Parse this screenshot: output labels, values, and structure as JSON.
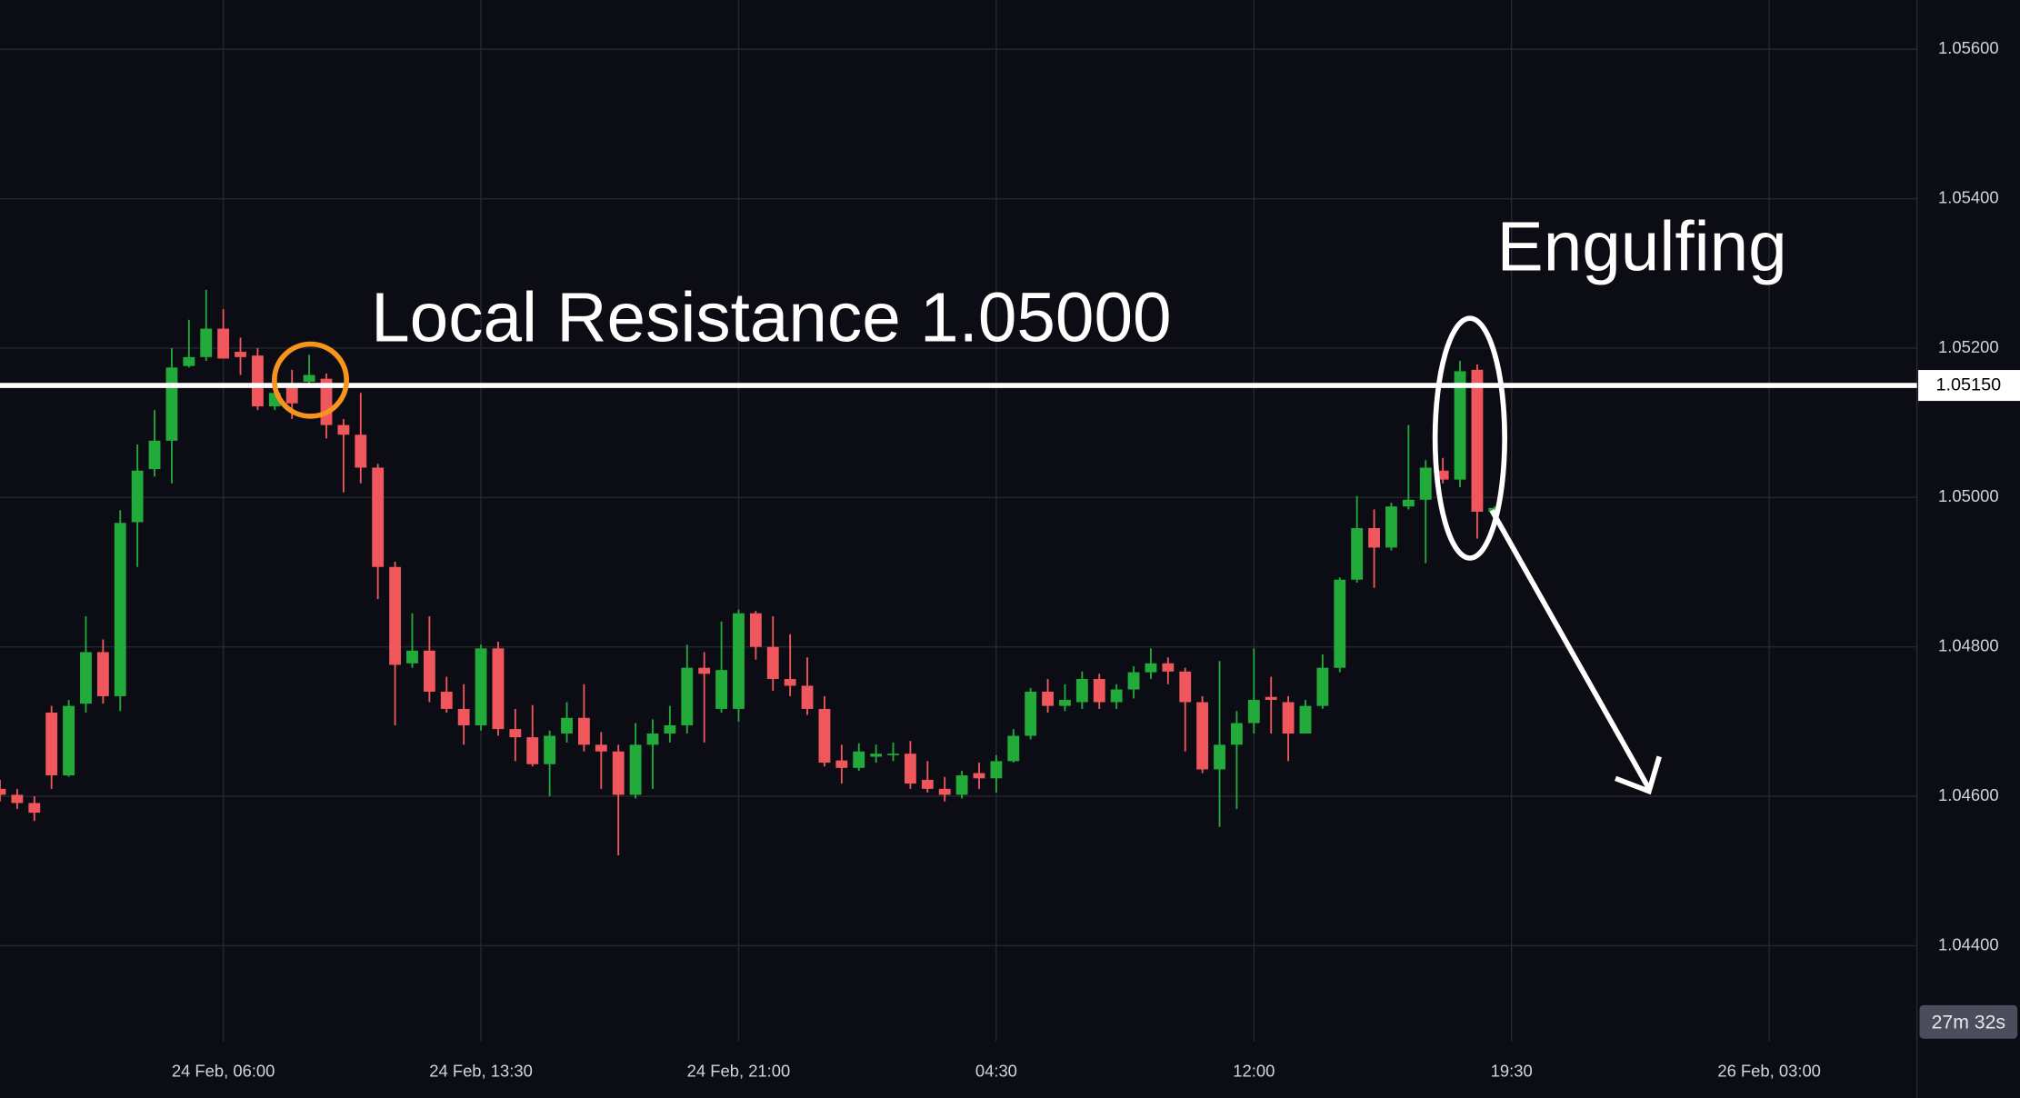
{
  "chart_data": {
    "type": "candlestick",
    "annotations": [
      "Local Resistance 1.05000",
      "Engulfing"
    ],
    "timer": "27m 32s",
    "up_color": "#22ab3b",
    "down_color": "#f0575c",
    "grid": true,
    "xlim": [
      0,
      111.6
    ],
    "xticks": [
      {
        "value": 13,
        "label": "24 Feb, 06:00"
      },
      {
        "value": 28,
        "label": "24 Feb, 13:30"
      },
      {
        "value": 43,
        "label": "24 Feb, 21:00"
      },
      {
        "value": 58,
        "label": "04:30"
      },
      {
        "value": 73,
        "label": "12:00"
      },
      {
        "value": 88,
        "label": "19:30"
      },
      {
        "value": 103,
        "label": "26 Feb, 03:00"
      }
    ],
    "ylim": [
      1.04272,
      1.05666
    ],
    "yticks": [
      {
        "value": 1.044,
        "label": "1.04400"
      },
      {
        "value": 1.046,
        "label": "1.04600"
      },
      {
        "value": 1.048,
        "label": "1.04800"
      },
      {
        "value": 1.05,
        "label": "1.05000"
      },
      {
        "value": 1.052,
        "label": "1.05200"
      },
      {
        "value": 1.054,
        "label": "1.05400"
      },
      {
        "value": 1.056,
        "label": "1.05600"
      }
    ],
    "price_line": {
      "value": 1.0515,
      "label": "1.05150"
    },
    "open": [
      1.0461,
      1.04602,
      1.04591,
      1.04712,
      1.04628,
      1.04724,
      1.04793,
      1.04734,
      1.04967,
      1.05038,
      1.05076,
      1.05176,
      1.05188,
      1.05226,
      1.05195,
      1.0519,
      1.05122,
      1.05152,
      1.05155,
      1.05159,
      1.05097,
      1.05084,
      1.0504,
      1.04907,
      1.04778,
      1.04795,
      1.0474,
      1.04717,
      1.04695,
      1.04798,
      1.0469,
      1.04679,
      1.04643,
      1.04684,
      1.04705,
      1.04669,
      1.0466,
      1.04602,
      1.04669,
      1.04684,
      1.04695,
      1.04772,
      1.04717,
      1.04717,
      1.04845,
      1.048,
      1.04757,
      1.04748,
      1.04717,
      1.04648,
      1.04638,
      1.04653,
      1.04655,
      1.04657,
      1.04622,
      1.0461,
      1.04602,
      1.04631,
      1.04624,
      1.04647,
      1.04681,
      1.0474,
      1.04721,
      1.04726,
      1.04757,
      1.04726,
      1.04743,
      1.04766,
      1.04778,
      1.04767,
      1.04726,
      1.04636,
      1.04669,
      1.04698,
      1.04733,
      1.04726,
      1.04684,
      1.04721,
      1.04772,
      1.0489,
      1.04959,
      1.04933,
      1.04988,
      1.04997,
      1.05036,
      1.05024,
      1.05171,
      1.04981
    ],
    "high": [
      1.04622,
      1.0461,
      1.046,
      1.04721,
      1.04729,
      1.04841,
      1.0481,
      1.04983,
      1.05071,
      1.05117,
      1.052,
      1.05238,
      1.05278,
      1.05252,
      1.05214,
      1.052,
      1.05166,
      1.05171,
      1.05191,
      1.05166,
      1.05105,
      1.0514,
      1.05045,
      1.04914,
      1.04845,
      1.04841,
      1.0476,
      1.0475,
      1.04803,
      1.04807,
      1.04717,
      1.04722,
      1.04688,
      1.04726,
      1.0475,
      1.04686,
      1.04669,
      1.04698,
      1.04703,
      1.04721,
      1.04803,
      1.04793,
      1.04834,
      1.0485,
      1.04848,
      1.04841,
      1.04817,
      1.04786,
      1.04734,
      1.04669,
      1.04671,
      1.04669,
      1.04672,
      1.04674,
      1.04647,
      1.04626,
      1.04634,
      1.04645,
      1.04655,
      1.0469,
      1.04745,
      1.04757,
      1.0475,
      1.04767,
      1.04764,
      1.0475,
      1.04774,
      1.04798,
      1.04786,
      1.04772,
      1.04734,
      1.04781,
      1.04714,
      1.04798,
      1.0476,
      1.04734,
      1.04729,
      1.0479,
      1.04893,
      1.05002,
      1.04984,
      1.04993,
      1.05097,
      1.0505,
      1.05053,
      1.05183,
      1.05178,
      1.04988
    ],
    "low": [
      1.04593,
      1.04583,
      1.04567,
      1.0461,
      1.04626,
      1.04712,
      1.04724,
      1.04714,
      1.04907,
      1.05028,
      1.05019,
      1.05174,
      1.05183,
      1.05186,
      1.05164,
      1.05117,
      1.05117,
      1.05105,
      1.05148,
      1.05079,
      1.05007,
      1.05019,
      1.04864,
      1.04695,
      1.04772,
      1.04726,
      1.04712,
      1.04669,
      1.04688,
      1.04681,
      1.04647,
      1.0464,
      1.046,
      1.04672,
      1.0466,
      1.0461,
      1.04521,
      1.04597,
      1.0461,
      1.04672,
      1.04684,
      1.04672,
      1.04712,
      1.047,
      1.04783,
      1.04741,
      1.04734,
      1.04709,
      1.0464,
      1.04617,
      1.04634,
      1.04645,
      1.04647,
      1.0461,
      1.04605,
      1.04593,
      1.04597,
      1.0461,
      1.04605,
      1.04645,
      1.04676,
      1.04712,
      1.04714,
      1.04717,
      1.04717,
      1.04717,
      1.04731,
      1.04757,
      1.0475,
      1.0466,
      1.04631,
      1.04559,
      1.04583,
      1.04684,
      1.04684,
      1.04647,
      1.04684,
      1.04717,
      1.04766,
      1.04886,
      1.04879,
      1.04929,
      1.04984,
      1.04912,
      1.05019,
      1.05014,
      1.04945,
      1.04979
    ],
    "close": [
      1.04602,
      1.04591,
      1.04578,
      1.04628,
      1.04721,
      1.04793,
      1.04734,
      1.04966,
      1.05036,
      1.05076,
      1.05174,
      1.05188,
      1.05226,
      1.05186,
      1.05188,
      1.05122,
      1.0514,
      1.05126,
      1.05164,
      1.05097,
      1.05084,
      1.0504,
      1.04907,
      1.04776,
      1.04795,
      1.0474,
      1.04717,
      1.04695,
      1.04798,
      1.0469,
      1.04679,
      1.04643,
      1.04681,
      1.04705,
      1.04669,
      1.0466,
      1.04602,
      1.04669,
      1.04684,
      1.04695,
      1.04772,
      1.04764,
      1.04769,
      1.04845,
      1.048,
      1.04757,
      1.04748,
      1.04717,
      1.04645,
      1.04638,
      1.0466,
      1.04657,
      1.04657,
      1.04617,
      1.0461,
      1.04602,
      1.04628,
      1.04624,
      1.04647,
      1.04681,
      1.0474,
      1.04721,
      1.04729,
      1.04757,
      1.04726,
      1.04743,
      1.04766,
      1.04778,
      1.04767,
      1.04726,
      1.04636,
      1.04669,
      1.04698,
      1.04729,
      1.04729,
      1.04684,
      1.04721,
      1.04772,
      1.0489,
      1.04959,
      1.04933,
      1.04988,
      1.04997,
      1.0504,
      1.05024,
      1.05169,
      1.04981,
      1.04986
    ]
  }
}
